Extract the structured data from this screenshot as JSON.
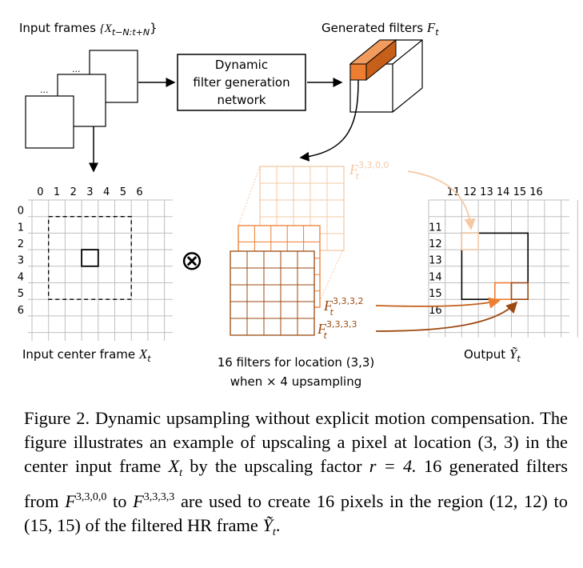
{
  "figure": {
    "input_frames_label": "Input frames",
    "input_frames_sym": "{X",
    "input_frames_sub": "t−N:t+N",
    "input_frames_close": "}",
    "dots": "...",
    "dfgn_line1": "Dynamic",
    "dfgn_line2": "filter generation",
    "dfgn_line3": "network",
    "generated_label": "Generated filters",
    "generated_sym": "F",
    "generated_sub": "t",
    "input_axis": [
      "0",
      "1",
      "2",
      "3",
      "4",
      "5",
      "6"
    ],
    "input_center_label": "Input center frame",
    "input_center_sym": "X",
    "input_center_sub": "t",
    "otimes": "⊗",
    "filter_top_sup": "3,3,0,0",
    "filter_mid_sup": "3,3,3,2",
    "filter_bot_sup": "3,3,3,3",
    "filter_sym": "F",
    "filter_sub": "t",
    "filters_line1": "16 filters for location (3,3)",
    "filters_line2": "when × 4 upsampling",
    "output_col_labels": [
      "11",
      "12",
      "13",
      "14",
      "15",
      "16"
    ],
    "output_row_labels": [
      "11",
      "12",
      "13",
      "14",
      "15",
      "16"
    ],
    "output_label": "Output",
    "output_sym": "Ỹ",
    "output_sub": "t",
    "colors": {
      "orange_light": "#f5c9a6",
      "orange": "#ed7d31",
      "brown": "#9c4a12",
      "grid": "#bfbfbf"
    }
  },
  "caption": {
    "lead": "Figure 2. Dynamic upsampling without explicit motion compensation. The figure illustrates an example of upscaling a pixel at location",
    "loc": "(3, 3)",
    "in_the": "in the center input frame",
    "X": "X",
    "t": "t",
    "by_factor": "by the upscaling factor",
    "r_eq": "r = 4.",
    "n16": "16 generated filters from",
    "F": "F",
    "sup_from": "3,3,0,0",
    "to": "to",
    "sup_to": "3,3,3,3",
    "used": "are used to create 16 pixels in the region",
    "region_from": "(12, 12)",
    "region_to_word": "to",
    "region_to": "(15, 15)",
    "of_the": "of the filtered HR frame",
    "Y": "Ỹ",
    "end": "."
  }
}
